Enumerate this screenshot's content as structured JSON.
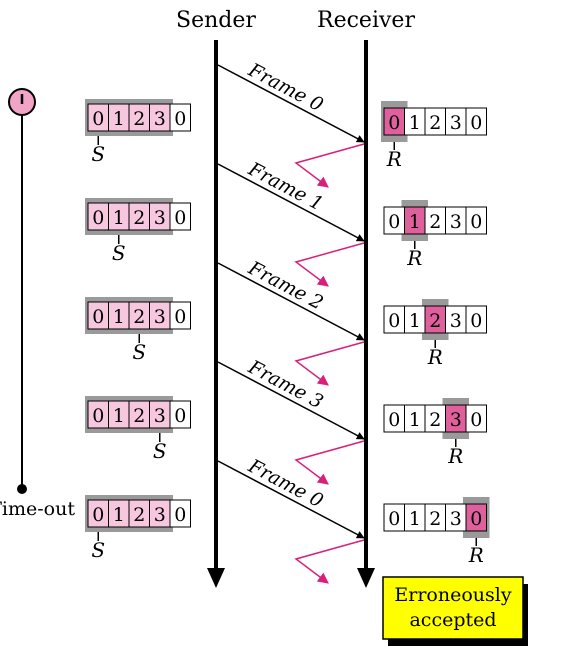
{
  "headers": {
    "sender": "Sender",
    "receiver": "Receiver"
  },
  "sequence_numbers": [
    "0",
    "1",
    "2",
    "3",
    "0"
  ],
  "sender_pointer": "S",
  "receiver_pointer": "R",
  "timer": {
    "label": "Time-out"
  },
  "frames": [
    {
      "label": "Frame 0",
      "sender_s_index": 0,
      "receiver_r_index": 0
    },
    {
      "label": "Frame 1",
      "sender_s_index": 1,
      "receiver_r_index": 1
    },
    {
      "label": "Frame 2",
      "sender_s_index": 2,
      "receiver_r_index": 2
    },
    {
      "label": "Frame 3",
      "sender_s_index": 3,
      "receiver_r_index": 3
    },
    {
      "label": "Frame 0",
      "sender_s_index": 0,
      "receiver_r_index": 4
    }
  ],
  "note": {
    "line1": "Erroneously",
    "line2": "accepted"
  },
  "colors": {
    "window_fill": "#f6c7df",
    "window_frame": "#9a9a9a",
    "highlight": "#e0609e",
    "ack_line": "#d8207a",
    "timer_fill": "#f2a4c8",
    "note_fill": "#ffff00",
    "line": "#000000"
  }
}
